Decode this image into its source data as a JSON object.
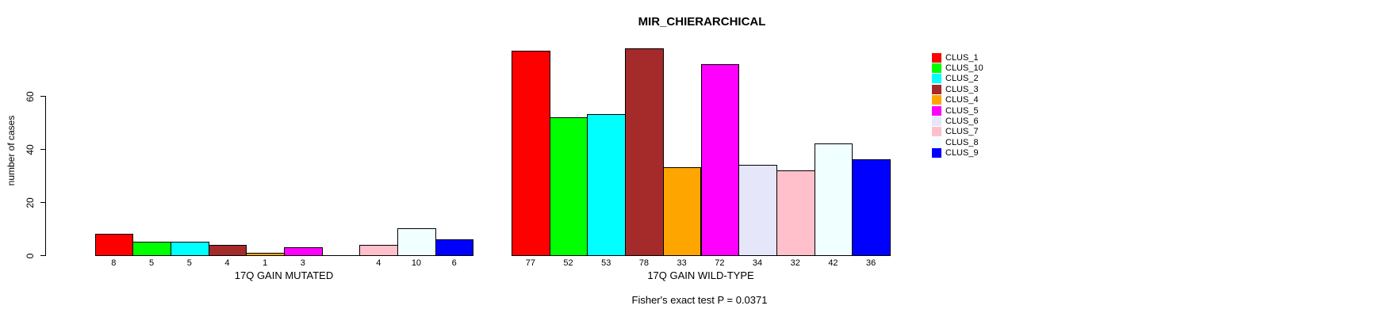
{
  "title": "MIR_CHIERARCHICAL",
  "caption": "Fisher's exact test P = 0.0371",
  "chart_data": {
    "type": "bar",
    "title": "MIR_CHIERARCHICAL",
    "ylabel": "number of cases",
    "xlabel": "",
    "ylim": [
      0,
      60
    ],
    "yticks": [
      0,
      20,
      40,
      60
    ],
    "grid": false,
    "legend_position": "right",
    "categories": [
      "CLUS_1",
      "CLUS_10",
      "CLUS_2",
      "CLUS_3",
      "CLUS_4",
      "CLUS_5",
      "CLUS_6",
      "CLUS_7",
      "CLUS_8",
      "CLUS_9"
    ],
    "colors": [
      "#FF0000",
      "#00FF00",
      "#00FFFF",
      "#A52A2A",
      "#FFA500",
      "#FF00FF",
      "#E6E6FA",
      "#FFC0CB",
      "#F0FFFF",
      "#0000FF"
    ],
    "groups": [
      {
        "label": "17Q GAIN MUTATED",
        "values": [
          8,
          5,
          5,
          4,
          1,
          3,
          0,
          4,
          10,
          6
        ]
      },
      {
        "label": "17Q GAIN WILD-TYPE",
        "values": [
          77,
          52,
          53,
          78,
          33,
          72,
          34,
          32,
          42,
          36
        ]
      }
    ],
    "legend": {
      "entries": [
        "CLUS_1",
        "CLUS_10",
        "CLUS_2",
        "CLUS_3",
        "CLUS_4",
        "CLUS_5",
        "CLUS_6",
        "CLUS_7",
        "CLUS_8",
        "CLUS_9"
      ]
    },
    "annotation": "Fisher's exact test P = 0.0371"
  }
}
